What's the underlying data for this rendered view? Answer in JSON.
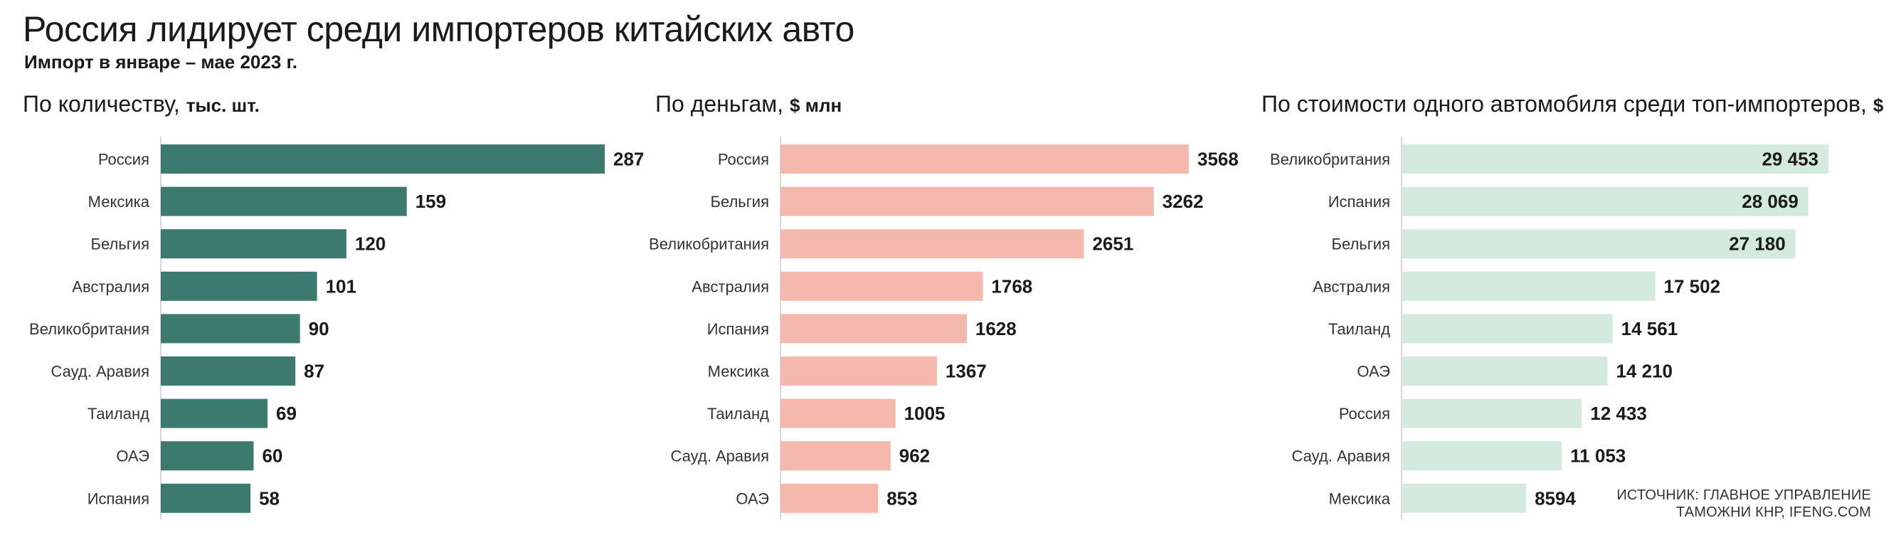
{
  "title": "Россия лидирует среди импортеров китайских авто",
  "subtitle": "Импорт в январе – мае 2023 г.",
  "source_line1": "ИСТОЧНИК: ГЛАВНОЕ УПРАВЛЕНИЕ",
  "source_line2": "ТАМОЖНИ КНР, IFENG.COM",
  "colors": {
    "quantity": "#3c7a6f",
    "money": "#f4b8ad",
    "unit_price": "#d4eadf",
    "axis": "#cccccc"
  },
  "chart_data": [
    {
      "type": "bar",
      "orientation": "horizontal",
      "title": "По количеству,",
      "unit": "тыс. шт.",
      "categories": [
        "Россия",
        "Мексика",
        "Бельгия",
        "Австралия",
        "Великобритания",
        "Сауд. Аравия",
        "Таиланд",
        "ОАЭ",
        "Испания"
      ],
      "values": [
        287,
        159,
        120,
        101,
        90,
        87,
        69,
        60,
        58
      ],
      "value_labels": [
        "287",
        "159",
        "120",
        "101",
        "90",
        "87",
        "69",
        "60",
        "58"
      ],
      "xlim": [
        0,
        287
      ]
    },
    {
      "type": "bar",
      "orientation": "horizontal",
      "title": "По деньгам,",
      "unit": "$ млн",
      "categories": [
        "Россия",
        "Бельгия",
        "Великобритания",
        "Австралия",
        "Испания",
        "Мексика",
        "Таиланд",
        "Сауд. Аравия",
        "ОАЭ"
      ],
      "values": [
        3568,
        3262,
        2651,
        1768,
        1628,
        1367,
        1005,
        962,
        853
      ],
      "value_labels": [
        "3568",
        "3262",
        "2651",
        "1768",
        "1628",
        "1367",
        "1005",
        "962",
        "853"
      ],
      "xlim": [
        0,
        3568
      ]
    },
    {
      "type": "bar",
      "orientation": "horizontal",
      "title": "По стоимости одного автомобиля среди топ-импортеров,",
      "unit": "$",
      "categories": [
        "Великобритания",
        "Испания",
        "Бельгия",
        "Австралия",
        "Таиланд",
        "ОАЭ",
        "Россия",
        "Сауд. Аравия",
        "Мексика"
      ],
      "values": [
        29453,
        28069,
        27180,
        17502,
        14561,
        14210,
        12433,
        11053,
        8594
      ],
      "value_labels": [
        "29 453",
        "28 069",
        "27 180",
        "17 502",
        "14 561",
        "14 210",
        "12 433",
        "11 053",
        "8594"
      ],
      "value_labels_inside_count": 3,
      "xlim": [
        0,
        29453
      ]
    }
  ]
}
